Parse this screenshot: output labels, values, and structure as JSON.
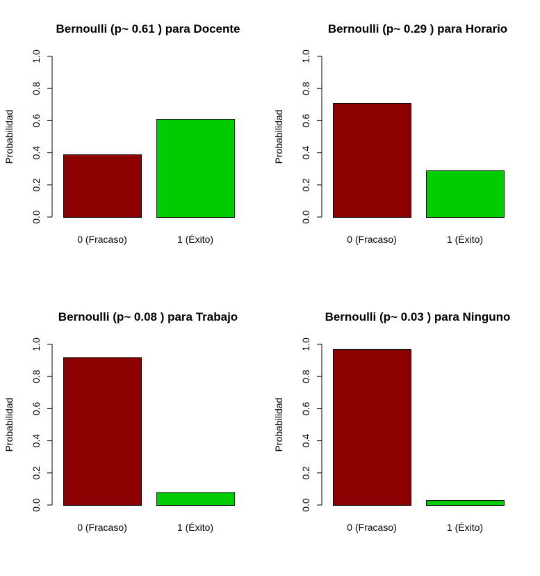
{
  "colors": {
    "fracaso": "#8B0000",
    "exito": "#00CD00",
    "axis": "#000000"
  },
  "chart_data": [
    {
      "type": "bar",
      "title": "Bernoulli (p~ 0.61 ) para Docente",
      "ylabel": "Probabilidad",
      "categories": [
        "0 (Fracaso)",
        "1 (Éxito)"
      ],
      "values": [
        0.39,
        0.61
      ],
      "ylim": [
        0,
        1
      ],
      "yticks": [
        "0.0",
        "0.2",
        "0.4",
        "0.6",
        "0.8",
        "1.0"
      ],
      "grid": false
    },
    {
      "type": "bar",
      "title": "Bernoulli (p~ 0.29 ) para Horario",
      "ylabel": "Probabilidad",
      "categories": [
        "0 (Fracaso)",
        "1 (Éxito)"
      ],
      "values": [
        0.71,
        0.29
      ],
      "ylim": [
        0,
        1
      ],
      "yticks": [
        "0.0",
        "0.2",
        "0.4",
        "0.6",
        "0.8",
        "1.0"
      ],
      "grid": false
    },
    {
      "type": "bar",
      "title": "Bernoulli (p~ 0.08 ) para Trabajo",
      "ylabel": "Probabilidad",
      "categories": [
        "0 (Fracaso)",
        "1 (Éxito)"
      ],
      "values": [
        0.92,
        0.08
      ],
      "ylim": [
        0,
        1
      ],
      "yticks": [
        "0.0",
        "0.2",
        "0.4",
        "0.6",
        "0.8",
        "1.0"
      ],
      "grid": false
    },
    {
      "type": "bar",
      "title": "Bernoulli (p~ 0.03 ) para Ninguno",
      "ylabel": "Probabilidad",
      "categories": [
        "0 (Fracaso)",
        "1 (Éxito)"
      ],
      "values": [
        0.97,
        0.03
      ],
      "ylim": [
        0,
        1
      ],
      "yticks": [
        "0.0",
        "0.2",
        "0.4",
        "0.6",
        "0.8",
        "1.0"
      ],
      "grid": false
    }
  ]
}
